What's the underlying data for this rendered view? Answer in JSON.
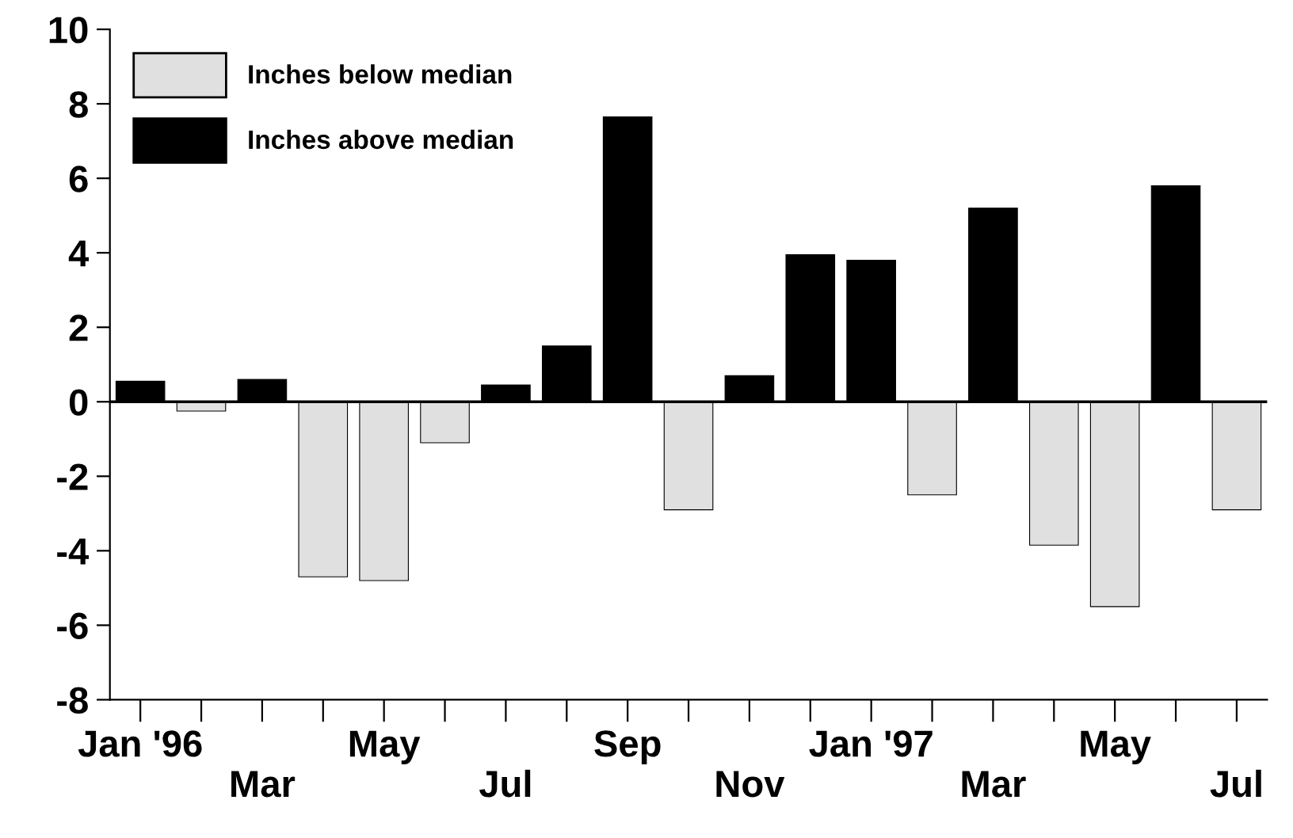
{
  "chart_data": {
    "type": "bar",
    "categories": [
      "Jan '96",
      null,
      "Mar",
      null,
      "May",
      null,
      "Jul",
      null,
      "Sep",
      null,
      "Nov",
      null,
      "Jan '97",
      null,
      "Mar",
      null,
      "May",
      null,
      "Jul"
    ],
    "series": [
      {
        "name": "Inches below median",
        "color": "#e0e0e0",
        "values": [
          null,
          -0.25,
          null,
          -4.7,
          -4.8,
          -1.1,
          null,
          null,
          null,
          -2.9,
          null,
          null,
          null,
          -2.5,
          null,
          -3.85,
          -5.5,
          null,
          -2.9
        ]
      },
      {
        "name": "Inches above median",
        "color": "#000000",
        "values": [
          0.55,
          null,
          0.6,
          null,
          null,
          null,
          0.45,
          1.5,
          7.65,
          null,
          0.7,
          3.95,
          3.8,
          null,
          5.2,
          null,
          null,
          5.8,
          null
        ]
      }
    ],
    "ylim": [
      -8,
      10
    ],
    "yticks": [
      -8,
      -6,
      -4,
      -2,
      0,
      2,
      4,
      6,
      8,
      10
    ],
    "ref_lines": [
      {
        "axis": "y",
        "value": 0,
        "color": "#000000"
      }
    ],
    "legend": "top left",
    "grid": false
  }
}
